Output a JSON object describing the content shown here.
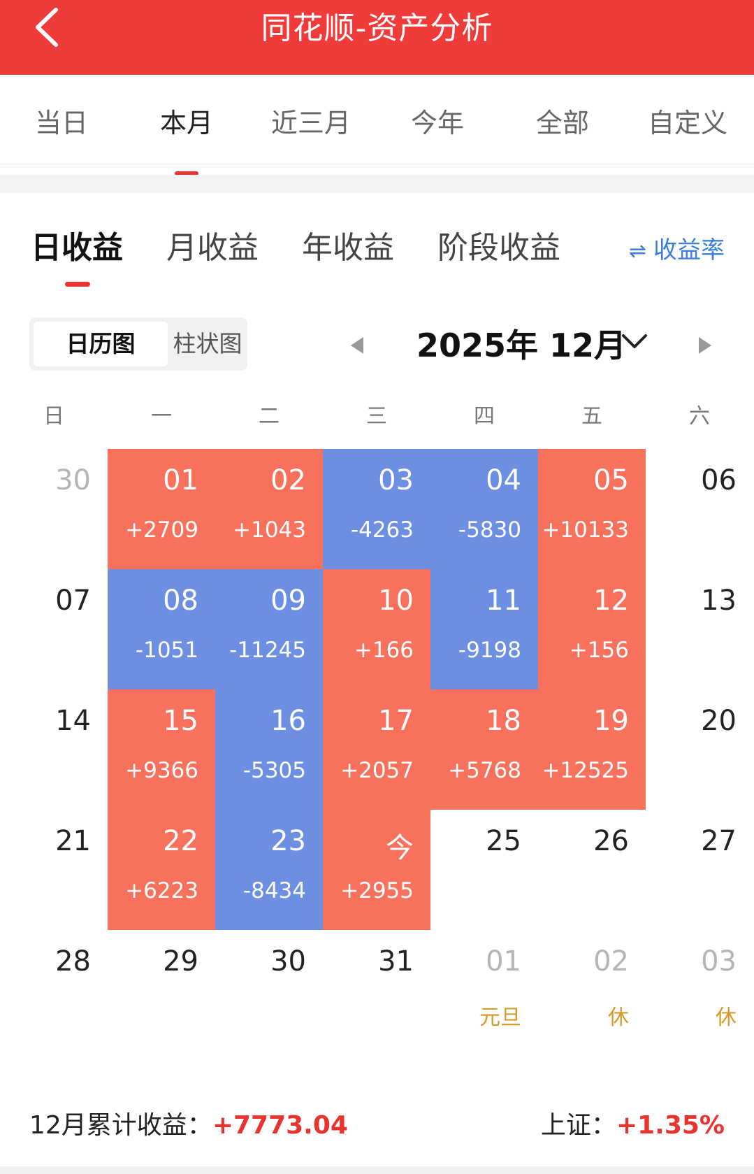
{
  "header": {
    "title": "同花顺-资产分析"
  },
  "period_tabs": [
    {
      "label": "当日"
    },
    {
      "label": "本月",
      "active": true
    },
    {
      "label": "近三月"
    },
    {
      "label": "今年"
    },
    {
      "label": "全部"
    },
    {
      "label": "自定义"
    }
  ],
  "type_tabs": [
    {
      "label": "日收益",
      "active": true
    },
    {
      "label": "月收益"
    },
    {
      "label": "年收益"
    },
    {
      "label": "阶段收益"
    }
  ],
  "rate_link": {
    "icon": "swap-icon",
    "label": "收益率"
  },
  "view_toggle": {
    "selected": "日历图",
    "other": "柱状图"
  },
  "month_nav": {
    "label": "2025年 12月"
  },
  "weekdays": [
    "日",
    "一",
    "二",
    "三",
    "四",
    "五",
    "六"
  ],
  "weeks": [
    [
      {
        "day": "30",
        "muted": true
      },
      {
        "day": "01",
        "pnl": "+2709",
        "type": "pos"
      },
      {
        "day": "02",
        "pnl": "+1043",
        "type": "pos"
      },
      {
        "day": "03",
        "pnl": "-4263",
        "type": "neg"
      },
      {
        "day": "04",
        "pnl": "-5830",
        "type": "neg"
      },
      {
        "day": "05",
        "pnl": "+10133",
        "type": "pos"
      },
      {
        "day": "06"
      }
    ],
    [
      {
        "day": "07"
      },
      {
        "day": "08",
        "pnl": "-1051",
        "type": "neg"
      },
      {
        "day": "09",
        "pnl": "-11245",
        "type": "neg"
      },
      {
        "day": "10",
        "pnl": "+166",
        "type": "pos"
      },
      {
        "day": "11",
        "pnl": "-9198",
        "type": "neg"
      },
      {
        "day": "12",
        "pnl": "+156",
        "type": "pos"
      },
      {
        "day": "13"
      }
    ],
    [
      {
        "day": "14"
      },
      {
        "day": "15",
        "pnl": "+9366",
        "type": "pos"
      },
      {
        "day": "16",
        "pnl": "-5305",
        "type": "neg"
      },
      {
        "day": "17",
        "pnl": "+2057",
        "type": "pos"
      },
      {
        "day": "18",
        "pnl": "+5768",
        "type": "pos"
      },
      {
        "day": "19",
        "pnl": "+12525",
        "type": "pos"
      },
      {
        "day": "20"
      }
    ],
    [
      {
        "day": "21"
      },
      {
        "day": "22",
        "pnl": "+6223",
        "type": "pos"
      },
      {
        "day": "23",
        "pnl": "-8434",
        "type": "neg"
      },
      {
        "day": "今",
        "pnl": "+2955",
        "type": "pos"
      },
      {
        "day": "25"
      },
      {
        "day": "26"
      },
      {
        "day": "27"
      }
    ],
    [
      {
        "day": "28"
      },
      {
        "day": "29"
      },
      {
        "day": "30"
      },
      {
        "day": "31"
      },
      {
        "day": "01",
        "muted": true,
        "note": "元旦"
      },
      {
        "day": "02",
        "muted": true,
        "note": "休"
      },
      {
        "day": "03",
        "muted": true,
        "note": "休"
      }
    ]
  ],
  "summary": {
    "label": "12月累计收益：",
    "value": "+7773.04"
  },
  "index": {
    "label": "上证：",
    "value": "+1.35%"
  },
  "colors": {
    "header": "#ef3b3a",
    "gain": "#f8715d",
    "loss": "#6c8fe1",
    "accent": "#e8342e",
    "link": "#3b7fd9",
    "holiday": "#d89a2a"
  }
}
